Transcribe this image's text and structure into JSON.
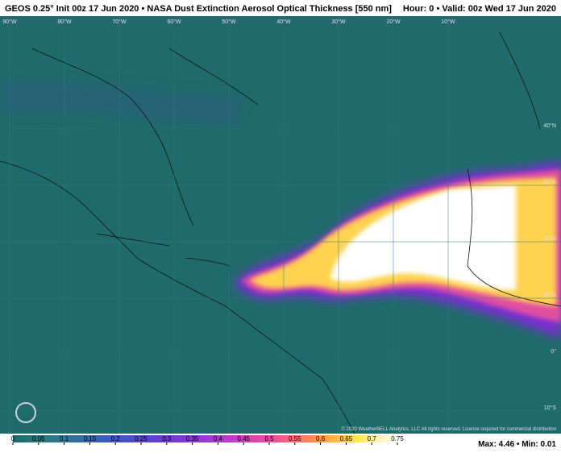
{
  "header": {
    "title": "GEOS 0.25° Init 00z 17 Jun 2020 • NASA Dust Extinction Aerosol Optical Thickness [550 nm]",
    "valid": "Hour: 0 • Valid: 00z Wed 17 Jun 2020"
  },
  "map": {
    "lon_labels": [
      "90°W",
      "80°W",
      "70°W",
      "60°W",
      "50°W",
      "40°W",
      "30°W",
      "20°W",
      "10°W"
    ],
    "lat_labels": [
      "40°N",
      "30°N",
      "20°N",
      "10°N",
      "0°",
      "10°S"
    ],
    "copyright": "© 2020 WeatherBELL Analytics, LLC All rights reserved. License required for commercial distribution"
  },
  "colorbar": {
    "ticks": [
      0,
      0.05,
      0.1,
      0.15,
      0.2,
      0.25,
      0.3,
      0.35,
      0.4,
      0.45,
      0.5,
      0.55,
      0.6,
      0.65,
      0.7,
      0.75
    ]
  },
  "footer": {
    "maxmin": "Max: 4.46 • Min: 0.01"
  }
}
